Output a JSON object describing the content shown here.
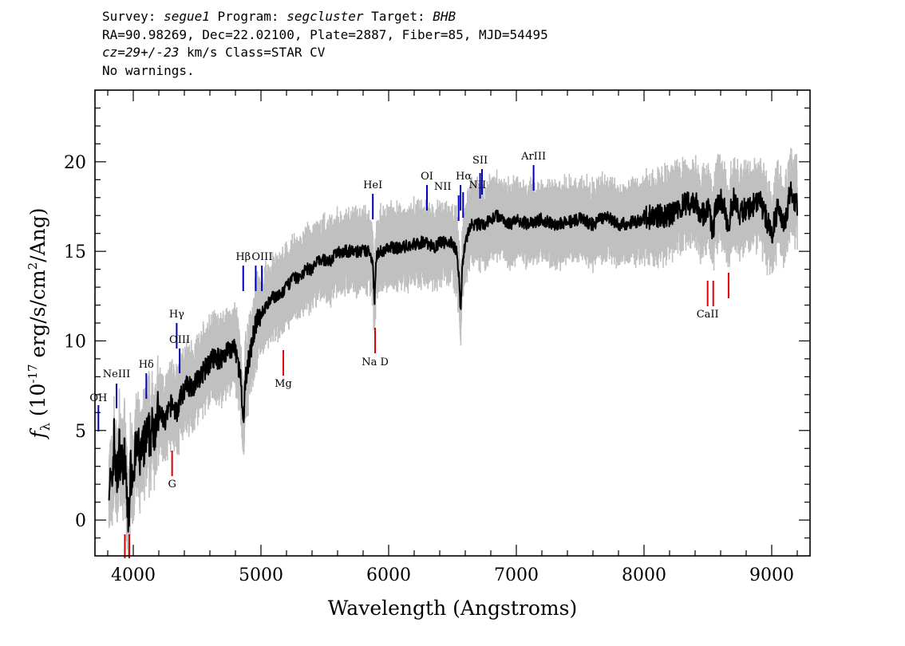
{
  "header": {
    "line1": {
      "survey_label": "Survey: ",
      "survey": "segue1",
      "program_label": " Program: ",
      "program": "segcluster",
      "target_label": " Target: ",
      "target": "BHB"
    },
    "line2": "RA=90.98269, Dec=22.02100, Plate=2887, Fiber=85, MJD=54495",
    "line3": {
      "cz": "cz=29+/-23",
      "rest": " km/s Class=STAR CV"
    },
    "line4": "No warnings."
  },
  "chart_data": {
    "type": "line",
    "title": "",
    "xlabel": "Wavelength (Angstroms)",
    "ylabel": "f_λ (10^-17 erg/s/cm^2/Ang)",
    "xlim": [
      3700,
      9300
    ],
    "ylim": [
      -2,
      24
    ],
    "x_ticks": [
      4000,
      5000,
      6000,
      7000,
      8000,
      9000
    ],
    "y_ticks": [
      0,
      5,
      10,
      15,
      20
    ],
    "grid": false,
    "legend": "none",
    "series": [
      {
        "color": "#000000",
        "x": [
          3810,
          3830,
          3850,
          3870,
          3890,
          3910,
          3930,
          3950,
          3960,
          3975,
          4000,
          4030,
          4060,
          4100,
          4150,
          4200,
          4250,
          4300,
          4340,
          4380,
          4420,
          4470,
          4520,
          4570,
          4620,
          4680,
          4740,
          4800,
          4840,
          4861,
          4880,
          4920,
          4960,
          5000,
          5050,
          5100,
          5150,
          5200,
          5250,
          5300,
          5350,
          5400,
          5450,
          5500,
          5550,
          5600,
          5650,
          5700,
          5750,
          5800,
          5850,
          5875,
          5890,
          5900,
          5920,
          5950,
          6000,
          6050,
          6100,
          6150,
          6200,
          6250,
          6300,
          6350,
          6400,
          6450,
          6500,
          6530,
          6550,
          6563,
          6575,
          6590,
          6620,
          6650,
          6700,
          6750,
          6800,
          6850,
          6900,
          6950,
          7000,
          7100,
          7200,
          7300,
          7400,
          7500,
          7600,
          7700,
          7800,
          7900,
          8000,
          8100,
          8200,
          8300,
          8400,
          8450,
          8500,
          8542,
          8560,
          8600,
          8662,
          8700,
          8750,
          8800,
          8850,
          8900,
          8950,
          9000,
          9050,
          9100,
          9150,
          9200
        ],
        "y": [
          2.5,
          1.5,
          4.5,
          2,
          4,
          3,
          3.5,
          1.5,
          -0.5,
          2.5,
          3,
          4,
          3.5,
          4.5,
          5,
          6,
          5.5,
          6.5,
          6,
          7,
          7.5,
          7.5,
          8,
          8.5,
          9,
          9,
          9.5,
          9.5,
          8,
          5,
          8,
          9.5,
          11,
          11.5,
          12,
          12.5,
          12.5,
          13,
          13.5,
          13.5,
          14,
          14,
          14.5,
          14.5,
          14.5,
          15,
          15,
          15,
          15,
          15,
          15,
          14.5,
          12,
          14.5,
          15,
          15,
          15.2,
          15.2,
          15.2,
          15.3,
          15.4,
          15.5,
          15.5,
          15.2,
          15.5,
          15.5,
          15.5,
          15,
          13.5,
          11.5,
          14,
          15,
          16,
          16.5,
          16.5,
          16.5,
          16.8,
          17,
          16.8,
          16.5,
          16.8,
          16.5,
          16.8,
          16.5,
          16.6,
          16.8,
          16.5,
          17,
          16.5,
          16.6,
          16.8,
          17,
          17,
          17.5,
          17.8,
          17,
          17.5,
          16,
          17.5,
          18,
          16.5,
          18,
          17,
          17.5,
          17.5,
          18,
          17,
          16,
          17.5,
          16.5,
          18.5,
          17.5
        ],
        "y_err": 1.2
      }
    ],
    "annotations": [
      {
        "label": "OH",
        "x": 3727,
        "color": "#0000bb"
      },
      {
        "label": "NeIII",
        "x": 3869,
        "color": "#0000bb"
      },
      {
        "label": "Hδ",
        "x": 4102,
        "color": "#0000bb"
      },
      {
        "label": "Hγ",
        "x": 4340,
        "color": "#0000bb"
      },
      {
        "label": "OIII",
        "x": 4363,
        "color": "#0000bb"
      },
      {
        "label": "Hβ",
        "x": 4861,
        "color": "#0000bb"
      },
      {
        "label": "OIII",
        "x": 4959,
        "color": "#0000bb"
      },
      {
        "label": "",
        "x": 5007,
        "color": "#0000bb"
      },
      {
        "label": "HeI",
        "x": 5876,
        "color": "#0000bb"
      },
      {
        "label": "OI",
        "x": 6300,
        "color": "#0000bb"
      },
      {
        "label": "NII",
        "x": 6548,
        "color": "#0000bb"
      },
      {
        "label": "Hα",
        "x": 6563,
        "color": "#0000bb"
      },
      {
        "label": "NII",
        "x": 6583,
        "color": "#0000bb"
      },
      {
        "label": "SII",
        "x": 6716,
        "color": "#0000bb"
      },
      {
        "label": "",
        "x": 6731,
        "color": "#0000bb"
      },
      {
        "label": "ArIII",
        "x": 7135,
        "color": "#0000bb"
      },
      {
        "label": "",
        "x": 3934,
        "color": "#dd0000"
      },
      {
        "label": "",
        "x": 3969,
        "color": "#dd0000"
      },
      {
        "label": "G",
        "x": 4304,
        "color": "#dd0000"
      },
      {
        "label": "Mg",
        "x": 5175,
        "color": "#dd0000"
      },
      {
        "label": "Na D",
        "x": 5894,
        "color": "#dd0000"
      },
      {
        "label": "CaII",
        "x": 8498,
        "color": "#dd0000"
      },
      {
        "label": "",
        "x": 8542,
        "color": "#dd0000"
      },
      {
        "label": "",
        "x": 8662,
        "color": "#dd0000"
      }
    ]
  }
}
